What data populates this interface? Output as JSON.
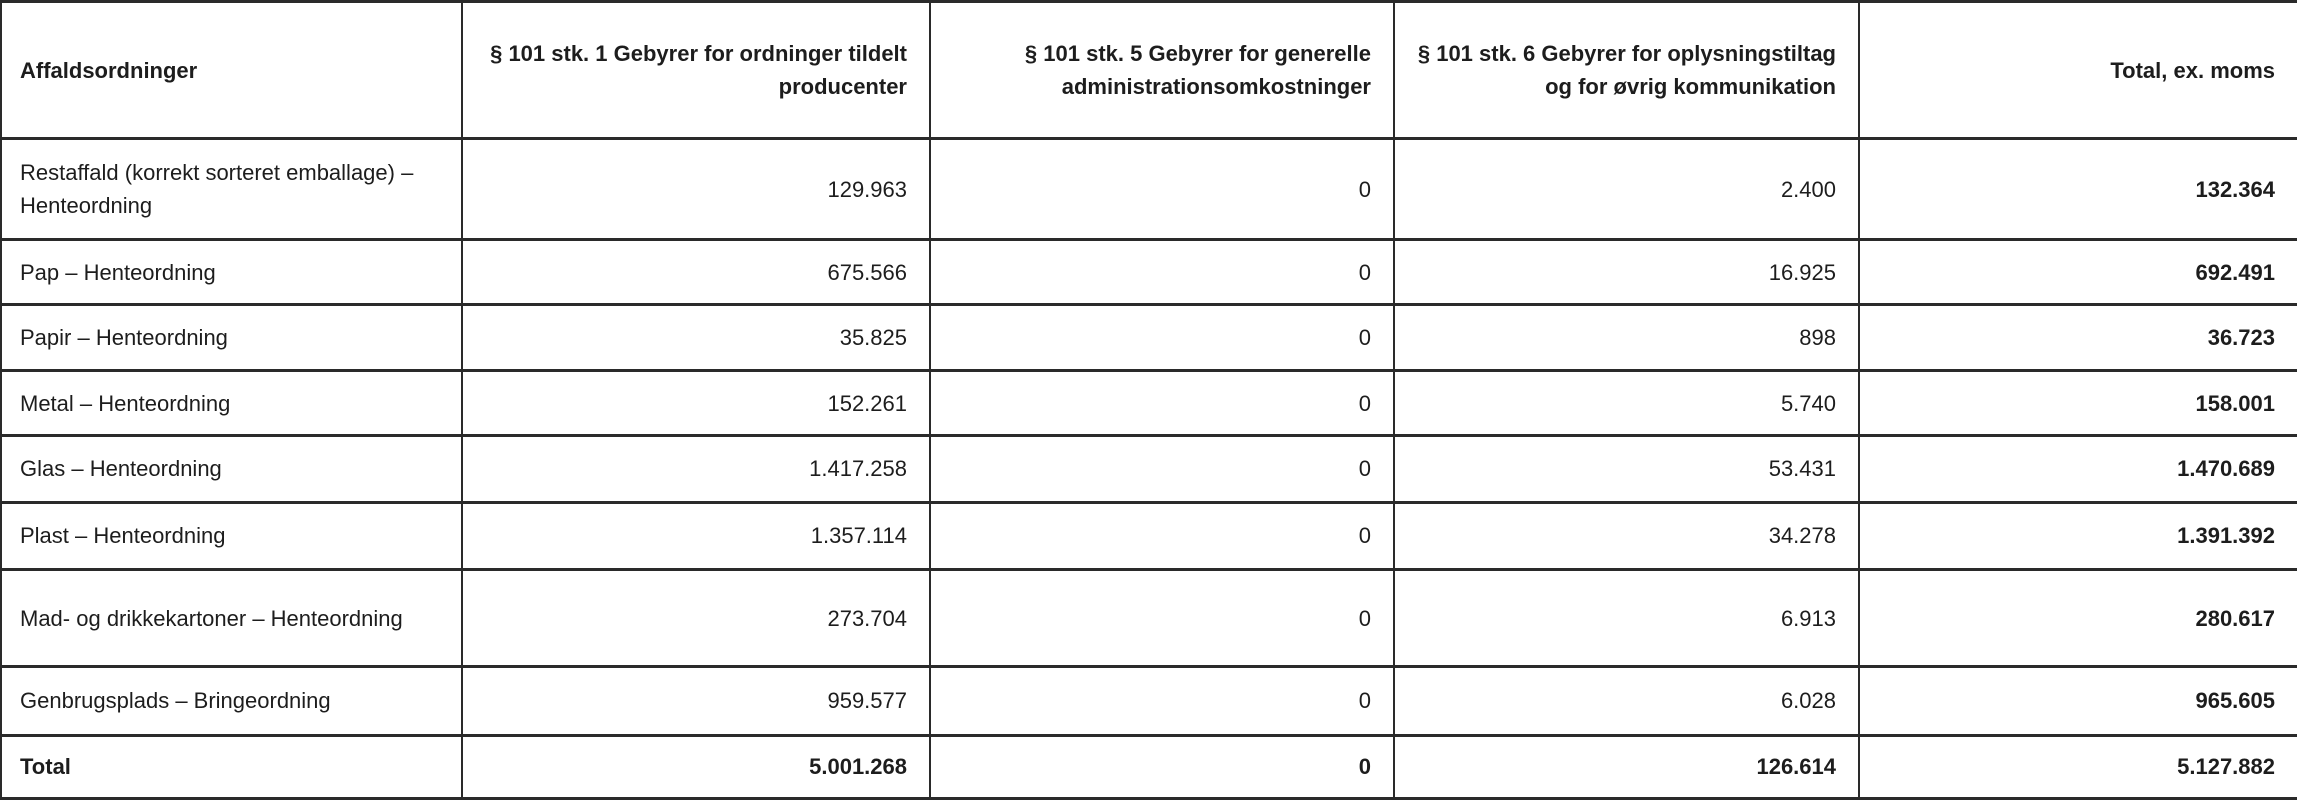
{
  "colors": {
    "text": "#1d1d1d",
    "border": "#2a2a2a",
    "background": "#ffffff"
  },
  "table": {
    "columns": [
      "Affaldsordninger",
      "§ 101 stk. 1 Gebyrer for ordninger tildelt producenter",
      "§ 101 stk. 5 Gebyrer for generelle administrationsomkostninger",
      "§ 101 stk. 6 Gebyrer for oplysningstiltag og for øvrig kommunikation",
      "Total, ex. moms"
    ],
    "rows": [
      {
        "label": "Restaffald (korrekt sorteret emballage) – Henteordning",
        "values": [
          "129.963",
          "0",
          "2.400"
        ],
        "total": "132.364"
      },
      {
        "label": "Pap – Henteordning",
        "values": [
          "675.566",
          "0",
          "16.925"
        ],
        "total": "692.491"
      },
      {
        "label": "Papir – Henteordning",
        "values": [
          "35.825",
          "0",
          "898"
        ],
        "total": "36.723"
      },
      {
        "label": "Metal – Henteordning",
        "values": [
          "152.261",
          "0",
          "5.740"
        ],
        "total": "158.001"
      },
      {
        "label": "Glas – Henteordning",
        "values": [
          "1.417.258",
          "0",
          "53.431"
        ],
        "total": "1.470.689"
      },
      {
        "label": "Plast – Henteordning",
        "values": [
          "1.357.114",
          "0",
          "34.278"
        ],
        "total": "1.391.392"
      },
      {
        "label": "Mad- og drikkekartoner – Henteordning",
        "values": [
          "273.704",
          "0",
          "6.913"
        ],
        "total": "280.617"
      },
      {
        "label": "Genbrugsplads – Bringeordning",
        "values": [
          "959.577",
          "0",
          "6.028"
        ],
        "total": "965.605"
      }
    ],
    "total_row": {
      "label": "Total",
      "values": [
        "5.001.268",
        "0",
        "126.614"
      ],
      "total": "5.127.882"
    }
  }
}
